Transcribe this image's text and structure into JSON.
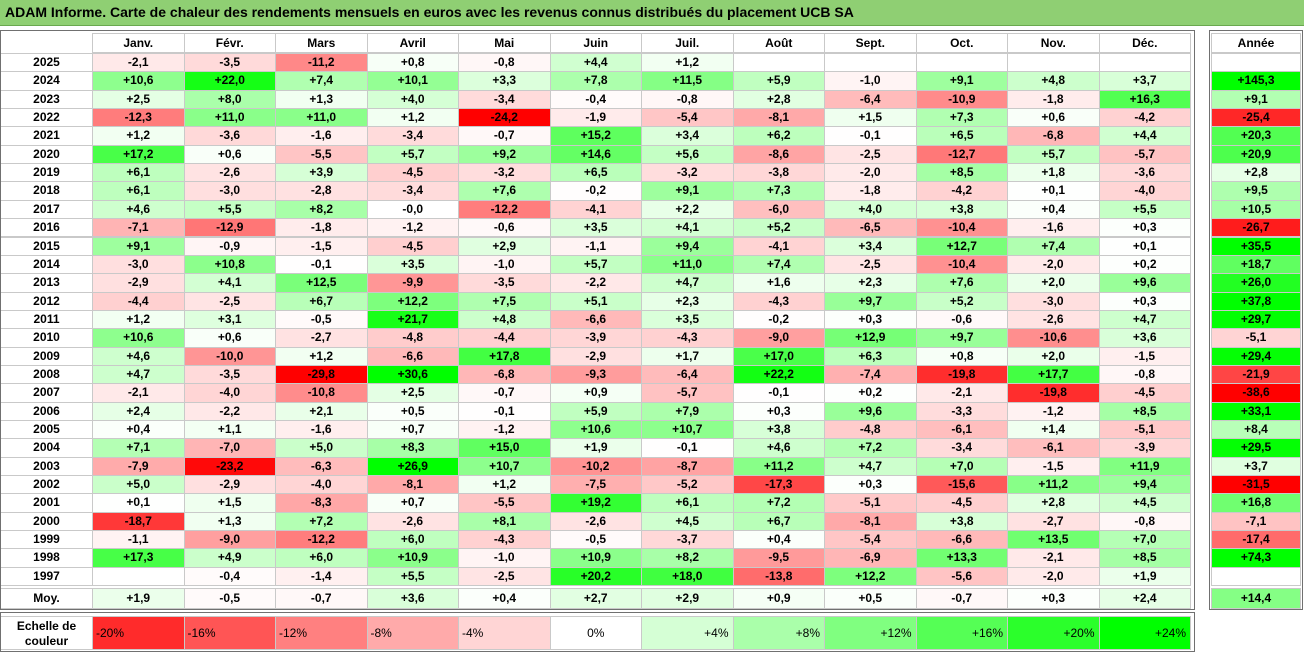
{
  "title": "ADAM Informe. Carte de chaleur des rendements mensuels en euros avec les revenus connus distribués du placement UCB SA",
  "chart_data": {
    "type": "heatmap",
    "months": [
      "Janv.",
      "Févr.",
      "Mars",
      "Avril",
      "Mai",
      "Juin",
      "Juil.",
      "Août",
      "Sept.",
      "Oct.",
      "Nov.",
      "Déc."
    ],
    "year_header": "Année",
    "rows": [
      {
        "year": "2025",
        "months": [
          "-2,1",
          "-3,5",
          "-11,2",
          "+0,8",
          "-0,8",
          "+4,4",
          "+1,2",
          "",
          "",
          "",
          "",
          ""
        ],
        "annual": ""
      },
      {
        "year": "2024",
        "months": [
          "+10,6",
          "+22,0",
          "+7,4",
          "+10,1",
          "+3,3",
          "+7,8",
          "+11,5",
          "+5,9",
          "-1,0",
          "+9,1",
          "+4,8",
          "+3,7"
        ],
        "annual": "+145,3"
      },
      {
        "year": "2023",
        "months": [
          "+2,5",
          "+8,0",
          "+1,3",
          "+4,0",
          "-3,4",
          "-0,4",
          "-0,8",
          "+2,8",
          "-6,4",
          "-10,9",
          "-1,8",
          "+16,3"
        ],
        "annual": "+9,1"
      },
      {
        "year": "2022",
        "months": [
          "-12,3",
          "+11,0",
          "+11,0",
          "+1,2",
          "-24,2",
          "-1,9",
          "-5,4",
          "-8,1",
          "+1,5",
          "+7,3",
          "+0,6",
          "-4,2"
        ],
        "annual": "-25,4"
      },
      {
        "year": "2021",
        "months": [
          "+1,2",
          "-3,6",
          "-1,6",
          "-3,4",
          "-0,7",
          "+15,2",
          "+3,4",
          "+6,2",
          "-0,1",
          "+6,5",
          "-6,8",
          "+4,4"
        ],
        "annual": "+20,3"
      },
      {
        "year": "2020",
        "months": [
          "+17,2",
          "+0,6",
          "-5,5",
          "+5,7",
          "+9,2",
          "+14,6",
          "+5,6",
          "-8,6",
          "-2,5",
          "-12,7",
          "+5,7",
          "-5,7"
        ],
        "annual": "+20,9"
      },
      {
        "year": "2019",
        "months": [
          "+6,1",
          "-2,6",
          "+3,9",
          "-4,5",
          "-3,2",
          "+6,5",
          "-3,2",
          "-3,8",
          "-2,0",
          "+8,5",
          "+1,8",
          "-3,6"
        ],
        "annual": "+2,8"
      },
      {
        "year": "2018",
        "months": [
          "+6,1",
          "-3,0",
          "-2,8",
          "-3,4",
          "+7,6",
          "-0,2",
          "+9,1",
          "+7,3",
          "-1,8",
          "-4,2",
          "+0,1",
          "-4,0"
        ],
        "annual": "+9,5"
      },
      {
        "year": "2017",
        "months": [
          "+4,6",
          "+5,5",
          "+8,2",
          "-0,0",
          "-12,2",
          "-4,1",
          "+2,2",
          "-6,0",
          "+4,0",
          "+3,8",
          "+0,4",
          "+5,5"
        ],
        "annual": "+10,5"
      },
      {
        "year": "2016",
        "months": [
          "-7,1",
          "-12,9",
          "-1,8",
          "-1,2",
          "-0,6",
          "+3,5",
          "+4,1",
          "+5,2",
          "-6,5",
          "-10,4",
          "-1,6",
          "+0,3"
        ],
        "annual": "-26,7"
      },
      {
        "year": "2015",
        "months": [
          "+9,1",
          "-0,9",
          "-1,5",
          "-4,5",
          "+2,9",
          "-1,1",
          "+9,4",
          "-4,1",
          "+3,4",
          "+12,7",
          "+7,4",
          "+0,1"
        ],
        "annual": "+35,5"
      },
      {
        "year": "2014",
        "months": [
          "-3,0",
          "+10,8",
          "-0,1",
          "+3,5",
          "-1,0",
          "+5,7",
          "+11,0",
          "+7,4",
          "-2,5",
          "-10,4",
          "-2,0",
          "+0,2"
        ],
        "annual": "+18,7"
      },
      {
        "year": "2013",
        "months": [
          "-2,9",
          "+4,1",
          "+12,5",
          "-9,9",
          "-3,5",
          "-2,2",
          "+4,7",
          "+1,6",
          "+2,3",
          "+7,6",
          "+2,0",
          "+9,6"
        ],
        "annual": "+26,0"
      },
      {
        "year": "2012",
        "months": [
          "-4,4",
          "-2,5",
          "+6,7",
          "+12,2",
          "+7,5",
          "+5,1",
          "+2,3",
          "-4,3",
          "+9,7",
          "+5,2",
          "-3,0",
          "+0,3"
        ],
        "annual": "+37,8"
      },
      {
        "year": "2011",
        "months": [
          "+1,2",
          "+3,1",
          "-0,5",
          "+21,7",
          "+4,8",
          "-6,6",
          "+3,5",
          "-0,2",
          "+0,3",
          "-0,6",
          "-2,6",
          "+4,7"
        ],
        "annual": "+29,7"
      },
      {
        "year": "2010",
        "months": [
          "+10,6",
          "+0,6",
          "-2,7",
          "-4,8",
          "-4,4",
          "-3,9",
          "-4,3",
          "-9,0",
          "+12,9",
          "+9,7",
          "-10,6",
          "+3,6"
        ],
        "annual": "-5,1"
      },
      {
        "year": "2009",
        "months": [
          "+4,6",
          "-10,0",
          "+1,2",
          "-6,6",
          "+17,8",
          "-2,9",
          "+1,7",
          "+17,0",
          "+6,3",
          "+0,8",
          "+2,0",
          "-1,5"
        ],
        "annual": "+29,4"
      },
      {
        "year": "2008",
        "months": [
          "+4,7",
          "-3,5",
          "-29,8",
          "+30,6",
          "-6,8",
          "-9,3",
          "-6,4",
          "+22,2",
          "-7,4",
          "-19,8",
          "+17,7",
          "-0,8"
        ],
        "annual": "-21,9"
      },
      {
        "year": "2007",
        "months": [
          "-2,1",
          "-4,0",
          "-10,8",
          "+2,5",
          "-0,7",
          "+0,9",
          "-5,7",
          "-0,1",
          "+0,2",
          "-2,1",
          "-19,8",
          "-4,5"
        ],
        "annual": "-38,6"
      },
      {
        "year": "2006",
        "months": [
          "+2,4",
          "-2,2",
          "+2,1",
          "+0,5",
          "-0,1",
          "+5,9",
          "+7,9",
          "+0,3",
          "+9,6",
          "-3,3",
          "-1,2",
          "+8,5"
        ],
        "annual": "+33,1"
      },
      {
        "year": "2005",
        "months": [
          "+0,4",
          "+1,1",
          "-1,6",
          "+0,7",
          "-1,2",
          "+10,6",
          "+10,7",
          "+3,8",
          "-4,8",
          "-6,1",
          "+1,4",
          "-5,1"
        ],
        "annual": "+8,4"
      },
      {
        "year": "2004",
        "months": [
          "+7,1",
          "-7,0",
          "+5,0",
          "+8,3",
          "+15,0",
          "+1,9",
          "-0,1",
          "+4,6",
          "+7,2",
          "-3,4",
          "-6,1",
          "-3,9"
        ],
        "annual": "+29,5"
      },
      {
        "year": "2003",
        "months": [
          "-7,9",
          "-23,2",
          "-6,3",
          "+26,9",
          "+10,7",
          "-10,2",
          "-8,7",
          "+11,2",
          "+4,7",
          "+7,0",
          "-1,5",
          "+11,9"
        ],
        "annual": "+3,7"
      },
      {
        "year": "2002",
        "months": [
          "+5,0",
          "-2,9",
          "-4,0",
          "-8,1",
          "+1,2",
          "-7,5",
          "-5,2",
          "-17,3",
          "+0,3",
          "-15,6",
          "+11,2",
          "+9,4"
        ],
        "annual": "-31,5"
      },
      {
        "year": "2001",
        "months": [
          "+0,1",
          "+1,5",
          "-8,3",
          "+0,7",
          "-5,5",
          "+19,2",
          "+6,1",
          "+7,2",
          "-5,1",
          "-4,5",
          "+2,8",
          "+4,5"
        ],
        "annual": "+16,8"
      },
      {
        "year": "2000",
        "months": [
          "-18,7",
          "+1,3",
          "+7,2",
          "-2,6",
          "+8,1",
          "-2,6",
          "+4,5",
          "+6,7",
          "-8,1",
          "+3,8",
          "-2,7",
          "-0,8"
        ],
        "annual": "-7,1"
      },
      {
        "year": "1999",
        "months": [
          "-1,1",
          "-9,0",
          "-12,2",
          "+6,0",
          "-4,3",
          "-0,5",
          "-3,7",
          "+0,4",
          "-5,4",
          "-6,6",
          "+13,5",
          "+7,0"
        ],
        "annual": "-17,4"
      },
      {
        "year": "1998",
        "months": [
          "+17,3",
          "+4,9",
          "+6,0",
          "+10,9",
          "-1,0",
          "+10,9",
          "+8,2",
          "-9,5",
          "-6,9",
          "+13,3",
          "-2,1",
          "+8,5"
        ],
        "annual": "+74,3"
      },
      {
        "year": "1997",
        "months": [
          "",
          "-0,4",
          "-1,4",
          "+5,5",
          "-2,5",
          "+20,2",
          "+18,0",
          "-13,8",
          "+12,2",
          "-5,6",
          "-2,0",
          "+1,9"
        ],
        "annual": ""
      }
    ],
    "average": {
      "label": "Moy.",
      "months": [
        "+1,9",
        "-0,5",
        "-0,7",
        "+3,6",
        "+0,4",
        "+2,7",
        "+2,9",
        "+0,9",
        "+0,5",
        "-0,7",
        "+0,3",
        "+2,4"
      ],
      "annual": "+14,4"
    },
    "scale": {
      "label": "Echelle de couleur",
      "steps": [
        {
          "text": "-20%",
          "value": -20
        },
        {
          "text": "-16%",
          "value": -16
        },
        {
          "text": "-12%",
          "value": -12
        },
        {
          "text": "-8%",
          "value": -8
        },
        {
          "text": "-4%",
          "value": -4
        },
        {
          "text": "0%",
          "value": 0
        },
        {
          "text": "+4%",
          "value": 4
        },
        {
          "text": "+8%",
          "value": 8
        },
        {
          "text": "+12%",
          "value": 12
        },
        {
          "text": "+16%",
          "value": 16
        },
        {
          "text": "+20%",
          "value": 20
        },
        {
          "text": "+24%",
          "value": 24
        }
      ]
    },
    "colors": {
      "negative_max": "#ff0000",
      "neutral": "#ffffff",
      "positive_max": "#00ff00"
    }
  }
}
